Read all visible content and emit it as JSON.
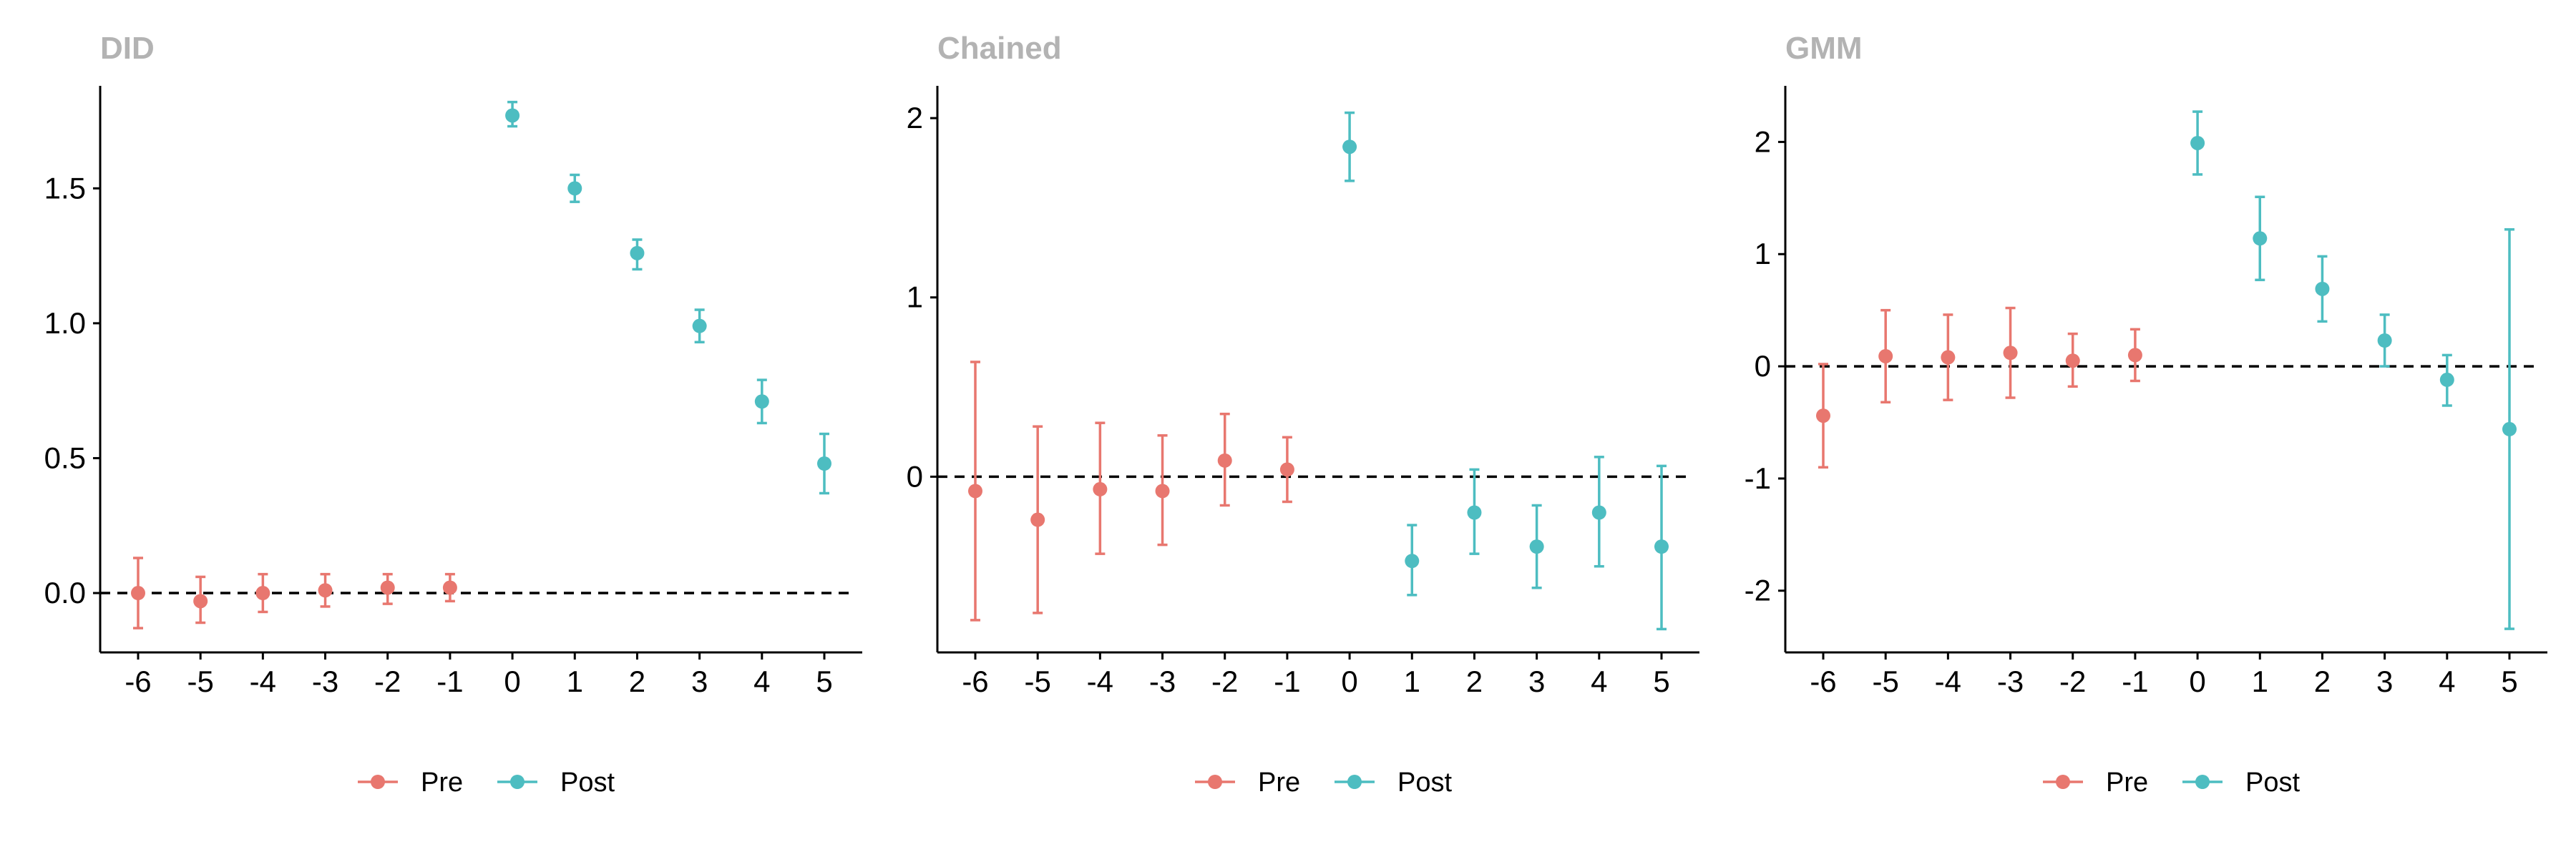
{
  "colors": {
    "pre": "#e8776f",
    "post": "#4dbdc1",
    "axis": "#000000",
    "title": "#b3b3b3",
    "reference_line": "#000000"
  },
  "legend": {
    "pre_label": "Pre",
    "post_label": "Post"
  },
  "chart_data": [
    {
      "type": "scatter",
      "subtype": "errorbar",
      "title": "DID",
      "x": [
        -6,
        -5,
        -4,
        -3,
        -2,
        -1,
        0,
        1,
        2,
        3,
        4,
        5
      ],
      "xticks": [
        "-6",
        "-5",
        "-4",
        "-3",
        "-2",
        "-1",
        "0",
        "1",
        "2",
        "3",
        "4",
        "5"
      ],
      "ylim": [
        -0.22,
        1.88
      ],
      "yticks": [
        0.0,
        0.5,
        1.0,
        1.5
      ],
      "ytick_labels": [
        "0.0",
        "0.5",
        "1.0",
        "1.5"
      ],
      "reference_line": 0,
      "grid": false,
      "legend_position": "bottom",
      "series": [
        {
          "name": "Pre",
          "x": [
            -6,
            -5,
            -4,
            -3,
            -2,
            -1
          ],
          "y": [
            0.0,
            -0.03,
            0.0,
            0.01,
            0.02,
            0.02
          ],
          "lower": [
            -0.13,
            -0.11,
            -0.07,
            -0.05,
            -0.04,
            -0.03
          ],
          "upper": [
            0.13,
            0.06,
            0.07,
            0.07,
            0.07,
            0.07
          ]
        },
        {
          "name": "Post",
          "x": [
            0,
            1,
            2,
            3,
            4,
            5
          ],
          "y": [
            1.77,
            1.5,
            1.26,
            0.99,
            0.71,
            0.48
          ],
          "lower": [
            1.73,
            1.45,
            1.2,
            0.93,
            0.63,
            0.37
          ],
          "upper": [
            1.82,
            1.55,
            1.31,
            1.05,
            0.79,
            0.59
          ]
        }
      ]
    },
    {
      "type": "scatter",
      "subtype": "errorbar",
      "title": "Chained",
      "x": [
        -6,
        -5,
        -4,
        -3,
        -2,
        -1,
        0,
        1,
        2,
        3,
        4,
        5
      ],
      "xticks": [
        "-6",
        "-5",
        "-4",
        "-3",
        "-2",
        "-1",
        "0",
        "1",
        "2",
        "3",
        "4",
        "5"
      ],
      "ylim": [
        -0.98,
        2.18
      ],
      "yticks": [
        0,
        1,
        2
      ],
      "ytick_labels": [
        "0",
        "1",
        "2"
      ],
      "reference_line": 0,
      "grid": false,
      "legend_position": "bottom",
      "series": [
        {
          "name": "Pre",
          "x": [
            -6,
            -5,
            -4,
            -3,
            -2,
            -1
          ],
          "y": [
            -0.08,
            -0.24,
            -0.07,
            -0.08,
            0.09,
            0.04
          ],
          "lower": [
            -0.8,
            -0.76,
            -0.43,
            -0.38,
            -0.16,
            -0.14
          ],
          "upper": [
            0.64,
            0.28,
            0.3,
            0.23,
            0.35,
            0.22
          ]
        },
        {
          "name": "Post",
          "x": [
            0,
            1,
            2,
            3,
            4,
            5
          ],
          "y": [
            1.84,
            -0.47,
            -0.2,
            -0.39,
            -0.2,
            -0.39
          ],
          "lower": [
            1.65,
            -0.66,
            -0.43,
            -0.62,
            -0.5,
            -0.85
          ],
          "upper": [
            2.03,
            -0.27,
            0.04,
            -0.16,
            0.11,
            0.06
          ]
        }
      ]
    },
    {
      "type": "scatter",
      "subtype": "errorbar",
      "title": "GMM",
      "x": [
        -6,
        -5,
        -4,
        -3,
        -2,
        -1,
        0,
        1,
        2,
        3,
        4,
        5
      ],
      "xticks": [
        "-6",
        "-5",
        "-4",
        "-3",
        "-2",
        "-1",
        "0",
        "1",
        "2",
        "3",
        "4",
        "5"
      ],
      "ylim": [
        -2.55,
        2.5
      ],
      "yticks": [
        -2,
        -1,
        0,
        1,
        2
      ],
      "ytick_labels": [
        "-2",
        "-1",
        "0",
        "1",
        "2"
      ],
      "reference_line": 0,
      "grid": false,
      "legend_position": "bottom",
      "series": [
        {
          "name": "Pre",
          "x": [
            -6,
            -5,
            -4,
            -3,
            -2,
            -1
          ],
          "y": [
            -0.44,
            0.09,
            0.08,
            0.12,
            0.05,
            0.1
          ],
          "lower": [
            -0.9,
            -0.32,
            -0.3,
            -0.28,
            -0.18,
            -0.13
          ],
          "upper": [
            0.02,
            0.5,
            0.46,
            0.52,
            0.29,
            0.33
          ]
        },
        {
          "name": "Post",
          "x": [
            0,
            1,
            2,
            3,
            4,
            5
          ],
          "y": [
            1.99,
            1.14,
            0.69,
            0.23,
            -0.12,
            -0.56
          ],
          "lower": [
            1.71,
            0.77,
            0.4,
            0.0,
            -0.35,
            -2.34
          ],
          "upper": [
            2.27,
            1.51,
            0.98,
            0.46,
            0.1,
            1.22
          ]
        }
      ]
    }
  ]
}
